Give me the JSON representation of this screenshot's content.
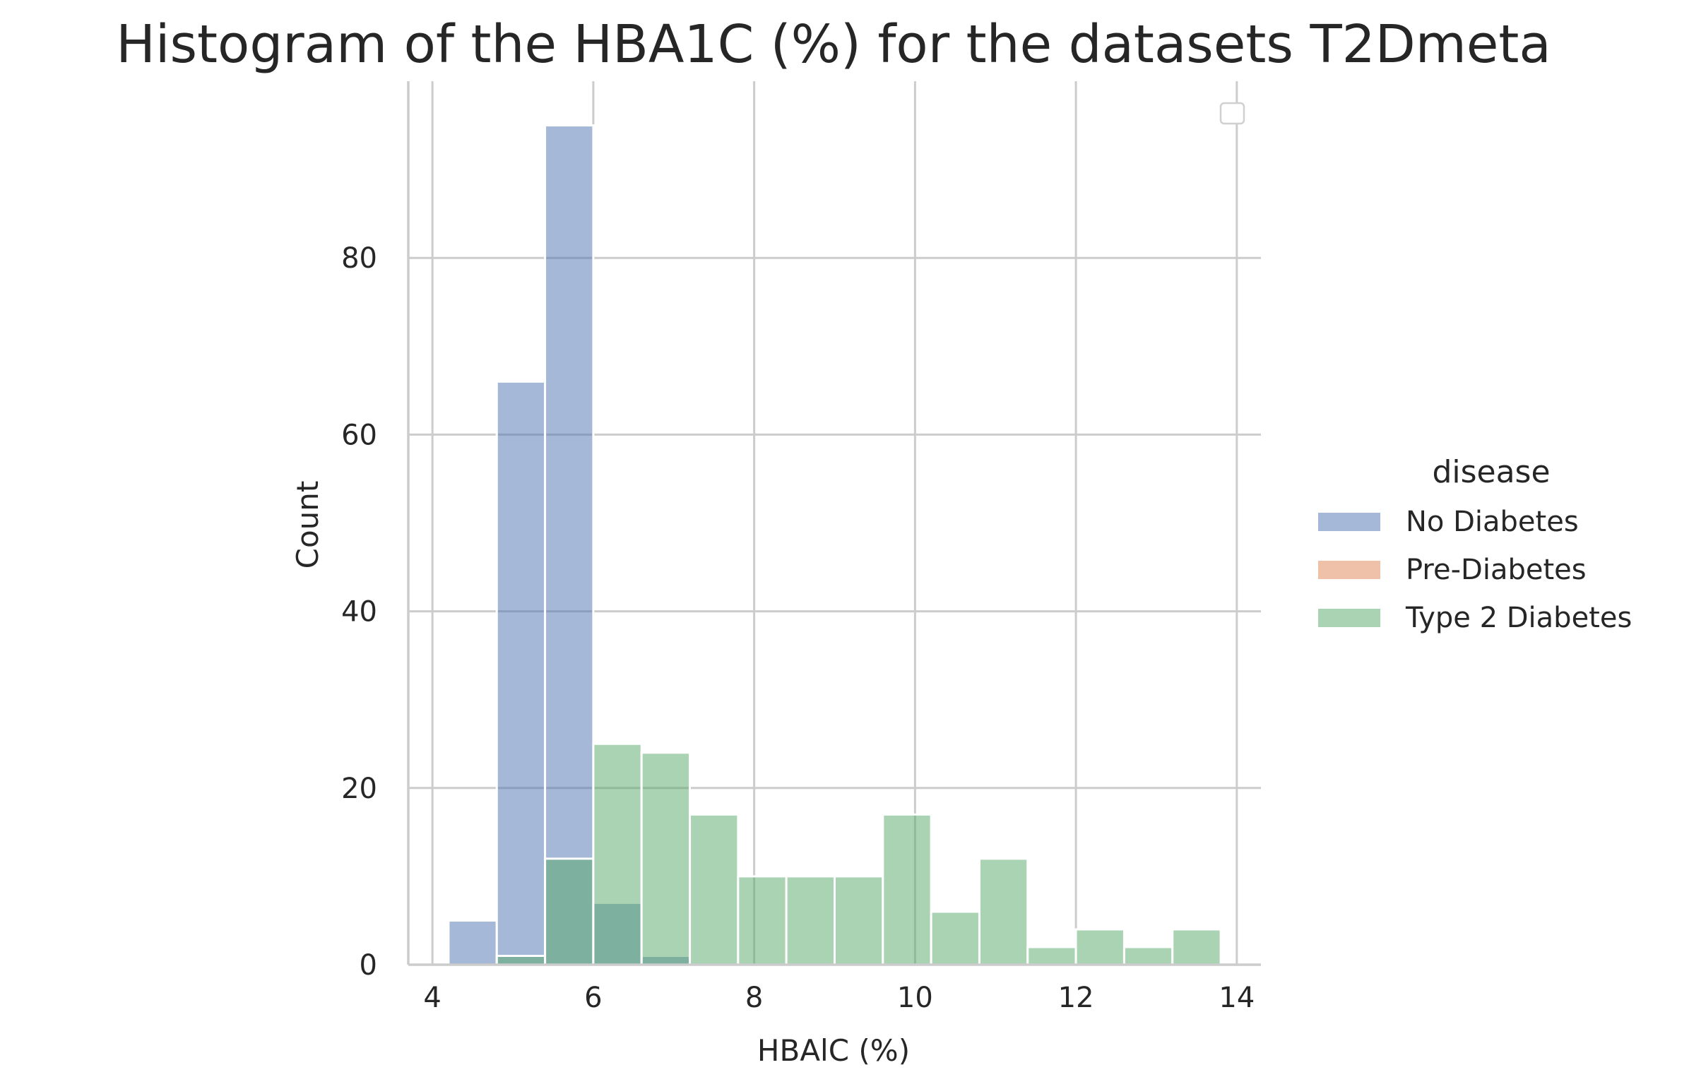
{
  "chart_data": {
    "type": "bar",
    "title": "Histogram of the HBA1C (%) for the datasets T2Dmeta",
    "xlabel": "HBAlC (%)",
    "ylabel": "Count",
    "xlim": [
      3.7,
      14.3
    ],
    "ylim": [
      0,
      100
    ],
    "xticks": [
      4,
      6,
      8,
      10,
      12,
      14
    ],
    "yticks": [
      0,
      20,
      40,
      60,
      80
    ],
    "grid": true,
    "bin_edges": [
      4.2,
      4.8,
      5.4,
      6.0,
      6.6,
      7.2,
      7.8,
      8.4,
      9.0,
      9.6,
      10.2,
      10.8,
      11.4,
      12.0,
      12.6,
      13.2,
      13.8
    ],
    "series": [
      {
        "name": "No Diabetes",
        "color": "#4c72b0",
        "values": [
          5,
          66,
          95,
          7,
          1,
          0,
          0,
          0,
          0,
          0,
          0,
          0,
          0,
          0,
          0,
          0
        ]
      },
      {
        "name": "Pre-Diabetes",
        "color": "#dd8452",
        "values": [
          0,
          0,
          0,
          0,
          0,
          0,
          0,
          0,
          0,
          0,
          0,
          0,
          0,
          0,
          0,
          0
        ]
      },
      {
        "name": "Type 2 Diabetes",
        "color": "#55a868",
        "values": [
          0,
          1,
          12,
          25,
          24,
          17,
          10,
          10,
          10,
          17,
          6,
          12,
          2,
          4,
          2,
          4
        ]
      }
    ],
    "legend": {
      "title": "disease",
      "position": "right"
    }
  }
}
